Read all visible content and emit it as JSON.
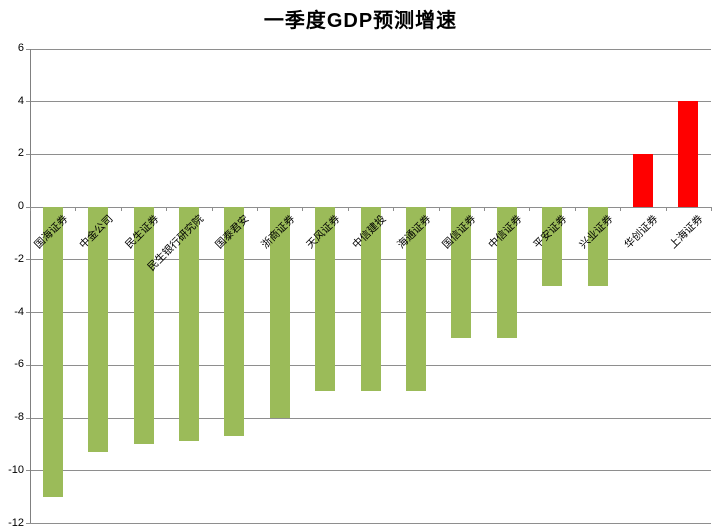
{
  "chart_data": {
    "type": "bar",
    "title": "一季度GDP预测增速",
    "categories": [
      "国海证券",
      "中金公司",
      "民生证券",
      "民生银行研究院",
      "国泰君安",
      "浙商证券",
      "天风证券",
      "中信建投",
      "海通证券",
      "国信证券",
      "中信证券",
      "平安证券",
      "兴业证券",
      "华创证券",
      "上海证券"
    ],
    "values": [
      -11,
      -9.3,
      -9,
      -8.9,
      -8.7,
      -8,
      -7,
      -7,
      -7,
      -5,
      -5,
      -3,
      -3,
      2,
      4
    ],
    "xlabel": "",
    "ylabel": "",
    "ylim": [
      -12,
      6
    ],
    "yticks": [
      6,
      4,
      2,
      0,
      -2,
      -4,
      -6,
      -8,
      -10,
      -12
    ],
    "grid": true,
    "legend": false,
    "colors": {
      "negative_bar": "#9BBB59",
      "positive_bar": "#FF0000",
      "gridline": "#8e8e8e",
      "axis": "#808080",
      "text": "#000000"
    }
  }
}
